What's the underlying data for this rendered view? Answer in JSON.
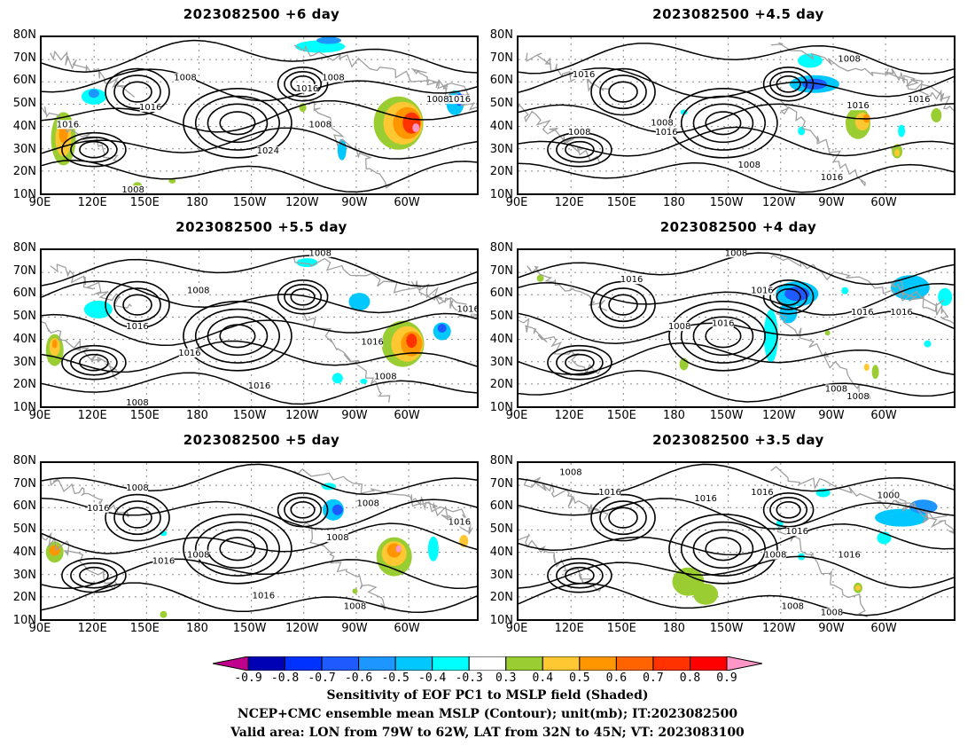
{
  "panels": [
    {
      "title": "2023082500  +6 day",
      "contour_labels": [
        "1008",
        "1016",
        "1016",
        "1024",
        "1008",
        "1016",
        "1008",
        "1008",
        "1016",
        "1008"
      ]
    },
    {
      "title": "2023082500  +4.5 day",
      "contour_labels": [
        "1008",
        "1016",
        "1008",
        "1016",
        "1008",
        "1016",
        "1016",
        "1016",
        "1008"
      ]
    },
    {
      "title": "2023082500  +5.5 day",
      "contour_labels": [
        "1008",
        "1008",
        "1016",
        "1016",
        "1016",
        "1016",
        "1008",
        "1016",
        "1008"
      ]
    },
    {
      "title": "2023082500  +4 day",
      "contour_labels": [
        "1008",
        "1016",
        "1016",
        "1008",
        "1016",
        "1016",
        "1016",
        "1008",
        "1008"
      ]
    },
    {
      "title": "2023082500  +5 day",
      "contour_labels": [
        "1008",
        "1016",
        "1016",
        "1008",
        "1008",
        "1008",
        "1016",
        "1016",
        "1008"
      ]
    },
    {
      "title": "2023082500  +3.5 day",
      "contour_labels": [
        "1008",
        "1016",
        "1016",
        "1008",
        "1016",
        "1000",
        "1016",
        "1016",
        "1008",
        "1008"
      ]
    }
  ],
  "axes": {
    "y_ticks": [
      "80N",
      "70N",
      "60N",
      "50N",
      "40N",
      "30N",
      "20N",
      "10N"
    ],
    "x_ticks": [
      "90E",
      "120E",
      "150E",
      "180",
      "150W",
      "120W",
      "90W",
      "60W"
    ]
  },
  "colorbar": {
    "labels": [
      "-0.9",
      "-0.8",
      "-0.7",
      "-0.6",
      "-0.5",
      "-0.4",
      "-0.3",
      "0.3",
      "0.4",
      "0.5",
      "0.6",
      "0.7",
      "0.8",
      "0.9"
    ],
    "colors": [
      "#c0008c",
      "#0000b4",
      "#0032ff",
      "#1e5aff",
      "#1e96ff",
      "#00c8ff",
      "#00ffff",
      "#ffffff",
      "#9acd32",
      "#ffc832",
      "#ff9600",
      "#ff6400",
      "#ff3200",
      "#ff0000",
      "#ff96c8"
    ]
  },
  "caption": {
    "line1": "Sensitivity of EOF PC1 to MSLP field (Shaded)",
    "line2": "NCEP+CMC ensemble mean MSLP (Contour); unit(mb); IT:2023082500",
    "line3": "Valid area: LON from 79W to 62W, LAT from 32N to 45N; VT: 2023083100"
  }
}
